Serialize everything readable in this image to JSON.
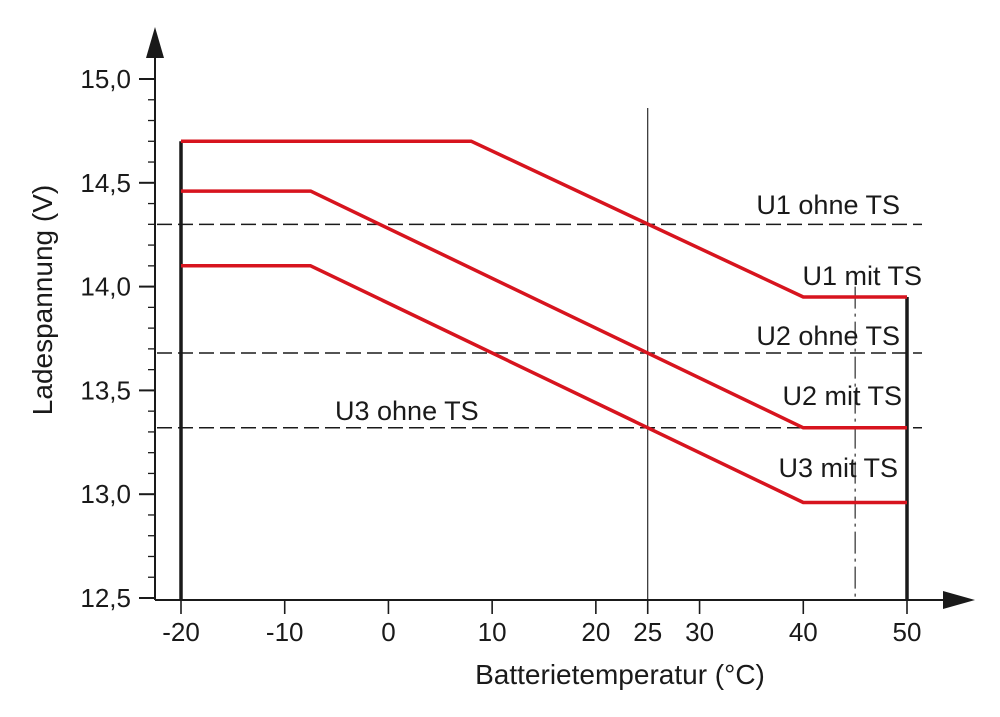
{
  "chart_data": {
    "type": "line",
    "xlabel": "Batterietemperatur (°C)",
    "ylabel": "Ladespannung (V)",
    "xlim": [
      -22.5,
      53.5
    ],
    "ylim": [
      12.5,
      15.0
    ],
    "x_ticks": [
      -20,
      -10,
      0,
      10,
      20,
      25,
      30,
      40,
      50
    ],
    "x_tick_labels": [
      "-20",
      "-10",
      "0",
      "10",
      "20",
      "25",
      "30",
      "40",
      "50"
    ],
    "y_ticks": [
      12.5,
      13.0,
      13.5,
      14.0,
      14.5,
      15.0
    ],
    "y_tick_labels": [
      "12,5",
      "13,0",
      "13,5",
      "14,0",
      "14,5",
      "15,0"
    ],
    "series": [
      {
        "name": "U1 mit TS",
        "color": "#d7141e",
        "x": [
          -20,
          8,
          40,
          50
        ],
        "y": [
          14.7,
          14.7,
          13.95,
          13.95
        ]
      },
      {
        "name": "U2 mit TS",
        "color": "#d7141e",
        "x": [
          -20,
          -7.5,
          40,
          50
        ],
        "y": [
          14.46,
          14.46,
          13.32,
          13.32
        ]
      },
      {
        "name": "U3 mit TS",
        "color": "#d7141e",
        "x": [
          -20,
          -7.5,
          40,
          50
        ],
        "y": [
          14.1,
          14.1,
          12.96,
          12.96
        ]
      }
    ],
    "reference_lines": [
      {
        "name": "U1 ohne TS",
        "y": 14.3,
        "style": "dashed"
      },
      {
        "name": "U2 ohne TS",
        "y": 13.68,
        "style": "dashed"
      },
      {
        "name": "U3 ohne TS",
        "y": 13.32,
        "style": "dashed"
      }
    ],
    "vertical_markers": [
      {
        "x": -20,
        "style": "thick-solid"
      },
      {
        "x": 25,
        "style": "thin-solid"
      },
      {
        "x": 45,
        "style": "dash-dot"
      },
      {
        "x": 50,
        "style": "thick-solid"
      }
    ],
    "grid": false,
    "legend": "none"
  }
}
